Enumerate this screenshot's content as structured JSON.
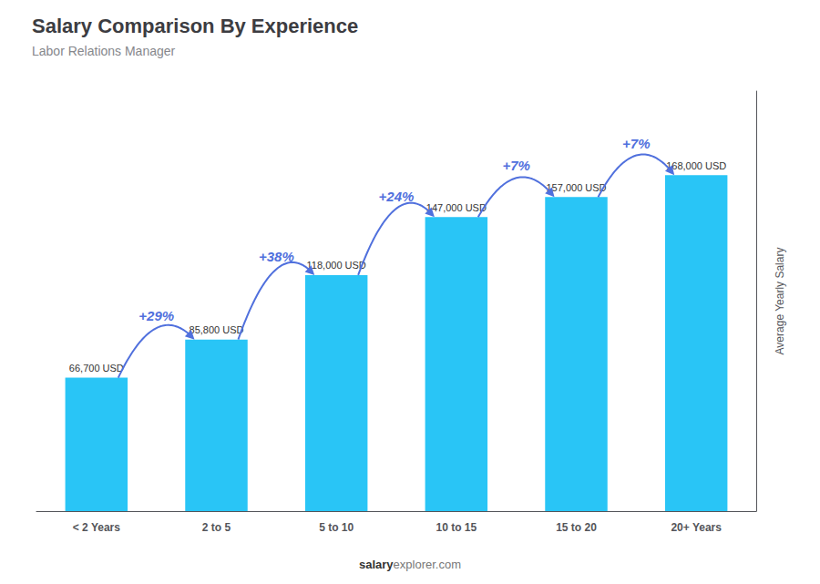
{
  "chart_data": {
    "type": "bar",
    "title": "Salary Comparison By Experience",
    "subtitle": "Labor Relations Manager",
    "categories": [
      "< 2 Years",
      "2 to 5",
      "5 to 10",
      "10 to 15",
      "15 to 20",
      "20+ Years"
    ],
    "values": [
      66700,
      85800,
      118000,
      147000,
      157000,
      168000
    ],
    "value_labels": [
      "66,700 USD",
      "85,800 USD",
      "118,000 USD",
      "147,000 USD",
      "157,000 USD",
      "168,000 USD"
    ],
    "data_labels": true,
    "color": "#29c5f6",
    "annotations": [
      "+29%",
      "+38%",
      "+24%",
      "+7%",
      "+7%"
    ],
    "ylabel": "Average Yearly Salary",
    "footer": [
      "salary",
      "explorer.com"
    ],
    "ylim": [
      0,
      210000
    ],
    "grid": false,
    "tick_labels": "x"
  }
}
